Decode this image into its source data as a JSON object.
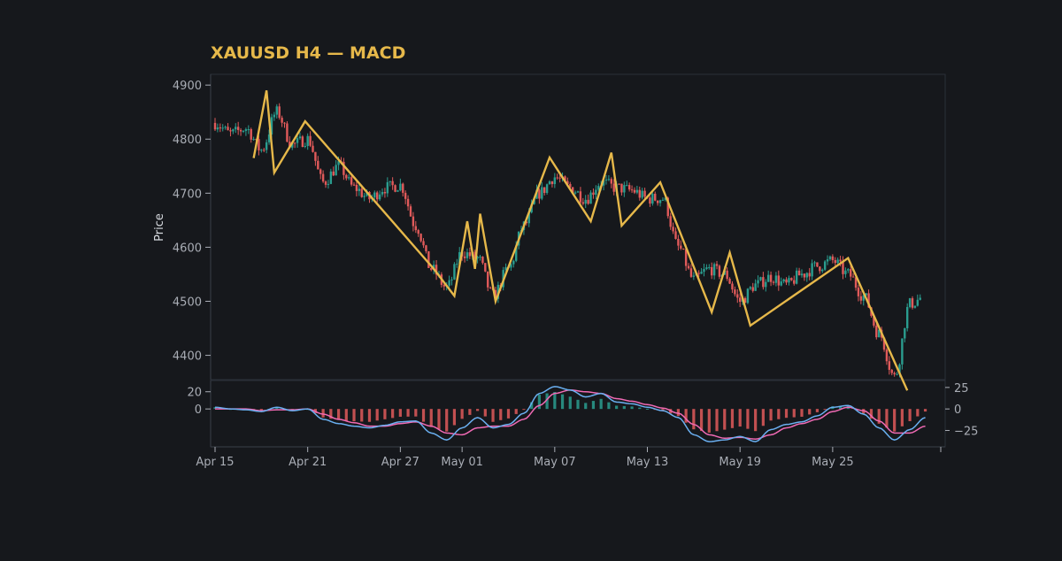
{
  "chart_data": {
    "type": "candlestick+macd",
    "title": "XAUUSD H4 — MACD",
    "price_panel": {
      "ylabel": "Price",
      "ylim": [
        4360,
        4915
      ],
      "yticks": [
        4400,
        4500,
        4600,
        4700,
        4800,
        4900
      ],
      "candles": {
        "start": "2025-04-15",
        "interval_hours": 4,
        "count": 275,
        "close_anchors": [
          [
            "2025-04-15",
            4830
          ],
          [
            "2025-04-16",
            4810
          ],
          [
            "2025-04-17",
            4820
          ],
          [
            "2025-04-18",
            4780
          ],
          [
            "2025-04-19",
            4850
          ],
          [
            "2025-04-20",
            4790
          ],
          [
            "2025-04-21",
            4800
          ],
          [
            "2025-04-22",
            4720
          ],
          [
            "2025-04-23",
            4750
          ],
          [
            "2025-04-24",
            4710
          ],
          [
            "2025-04-25",
            4690
          ],
          [
            "2025-04-26",
            4710
          ],
          [
            "2025-04-27",
            4715
          ],
          [
            "2025-04-28",
            4640
          ],
          [
            "2025-04-29",
            4560
          ],
          [
            "2025-04-30",
            4525
          ],
          [
            "2025-05-01",
            4590
          ],
          [
            "2025-05-02",
            4580
          ],
          [
            "2025-05-03",
            4510
          ],
          [
            "2025-05-04",
            4560
          ],
          [
            "2025-05-05",
            4640
          ],
          [
            "2025-05-06",
            4700
          ],
          [
            "2025-05-07",
            4730
          ],
          [
            "2025-05-08",
            4710
          ],
          [
            "2025-05-09",
            4690
          ],
          [
            "2025-05-10",
            4720
          ],
          [
            "2025-05-11",
            4710
          ],
          [
            "2025-05-12",
            4705
          ],
          [
            "2025-05-13",
            4690
          ],
          [
            "2025-05-14",
            4690
          ],
          [
            "2025-05-15",
            4600
          ],
          [
            "2025-05-16",
            4540
          ],
          [
            "2025-05-17",
            4560
          ],
          [
            "2025-05-18",
            4550
          ],
          [
            "2025-05-19",
            4500
          ],
          [
            "2025-05-20",
            4530
          ],
          [
            "2025-05-21",
            4545
          ],
          [
            "2025-05-22",
            4530
          ],
          [
            "2025-05-23",
            4550
          ],
          [
            "2025-05-24",
            4565
          ],
          [
            "2025-05-25",
            4575
          ],
          [
            "2025-05-26",
            4550
          ],
          [
            "2025-05-27",
            4510
          ],
          [
            "2025-05-28",
            4440
          ],
          [
            "2025-05-29",
            4360
          ],
          [
            "2025-05-30",
            4495
          ],
          [
            "2025-05-31",
            4510
          ]
        ]
      },
      "zigzag": [
        [
          "2025-04-17T12:00",
          4765
        ],
        [
          "2025-04-18T08:00",
          4890
        ],
        [
          "2025-04-18T20:00",
          4738
        ],
        [
          "2025-04-20T20:00",
          4833
        ],
        [
          "2025-04-29T04:00",
          4560
        ],
        [
          "2025-04-30T12:00",
          4510
        ],
        [
          "2025-05-01T08:00",
          4648
        ],
        [
          "2025-05-01T20:00",
          4560
        ],
        [
          "2025-05-02T04:00",
          4662
        ],
        [
          "2025-05-03T04:00",
          4500
        ],
        [
          "2025-05-06T16:00",
          4766
        ],
        [
          "2025-05-09T08:00",
          4648
        ],
        [
          "2025-05-10T16:00",
          4775
        ],
        [
          "2025-05-11T08:00",
          4640
        ],
        [
          "2025-05-13T20:00",
          4720
        ],
        [
          "2025-05-17T04:00",
          4480
        ],
        [
          "2025-05-18T08:00",
          4590
        ],
        [
          "2025-05-19T16:00",
          4455
        ],
        [
          "2025-05-26T00:00",
          4580
        ],
        [
          "2025-05-29T20:00",
          4335
        ]
      ]
    },
    "macd_panel": {
      "ylim": [
        -42,
        30
      ],
      "left_ticks": [
        0,
        20
      ],
      "right_ticks": [
        25,
        0,
        -25
      ],
      "macd_anchors": [
        [
          "2025-04-15",
          2
        ],
        [
          "2025-04-16",
          0
        ],
        [
          "2025-04-17",
          -1
        ],
        [
          "2025-04-18",
          -3
        ],
        [
          "2025-04-19",
          2
        ],
        [
          "2025-04-20",
          -2
        ],
        [
          "2025-04-21",
          0
        ],
        [
          "2025-04-22",
          -12
        ],
        [
          "2025-04-23",
          -17
        ],
        [
          "2025-04-24",
          -20
        ],
        [
          "2025-04-25",
          -22
        ],
        [
          "2025-04-26",
          -19
        ],
        [
          "2025-04-27",
          -15
        ],
        [
          "2025-04-28",
          -14
        ],
        [
          "2025-04-29",
          -28
        ],
        [
          "2025-04-30",
          -36
        ],
        [
          "2025-05-01",
          -22
        ],
        [
          "2025-05-02",
          -10
        ],
        [
          "2025-05-03",
          -22
        ],
        [
          "2025-05-04",
          -18
        ],
        [
          "2025-05-05",
          -5
        ],
        [
          "2025-05-06",
          18
        ],
        [
          "2025-05-07",
          26
        ],
        [
          "2025-05-08",
          22
        ],
        [
          "2025-05-09",
          14
        ],
        [
          "2025-05-10",
          18
        ],
        [
          "2025-05-11",
          8
        ],
        [
          "2025-05-12",
          6
        ],
        [
          "2025-05-13",
          2
        ],
        [
          "2025-05-14",
          -2
        ],
        [
          "2025-05-15",
          -10
        ],
        [
          "2025-05-16",
          -30
        ],
        [
          "2025-05-17",
          -38
        ],
        [
          "2025-05-18",
          -36
        ],
        [
          "2025-05-19",
          -32
        ],
        [
          "2025-05-20",
          -38
        ],
        [
          "2025-05-21",
          -24
        ],
        [
          "2025-05-22",
          -18
        ],
        [
          "2025-05-23",
          -15
        ],
        [
          "2025-05-24",
          -8
        ],
        [
          "2025-05-25",
          2
        ],
        [
          "2025-05-26",
          4
        ],
        [
          "2025-05-27",
          -6
        ],
        [
          "2025-05-28",
          -22
        ],
        [
          "2025-05-29",
          -36
        ],
        [
          "2025-05-30",
          -24
        ],
        [
          "2025-05-31",
          -10
        ]
      ],
      "signal_anchors": [
        [
          "2025-04-15",
          0
        ],
        [
          "2025-04-16",
          0
        ],
        [
          "2025-04-17",
          0
        ],
        [
          "2025-04-18",
          -2
        ],
        [
          "2025-04-19",
          -1
        ],
        [
          "2025-04-20",
          -1
        ],
        [
          "2025-04-21",
          0
        ],
        [
          "2025-04-22",
          -6
        ],
        [
          "2025-04-23",
          -12
        ],
        [
          "2025-04-24",
          -16
        ],
        [
          "2025-04-25",
          -20
        ],
        [
          "2025-04-26",
          -20
        ],
        [
          "2025-04-27",
          -17
        ],
        [
          "2025-04-28",
          -15
        ],
        [
          "2025-04-29",
          -20
        ],
        [
          "2025-04-30",
          -28
        ],
        [
          "2025-05-01",
          -30
        ],
        [
          "2025-05-02",
          -22
        ],
        [
          "2025-05-03",
          -20
        ],
        [
          "2025-05-04",
          -20
        ],
        [
          "2025-05-05",
          -12
        ],
        [
          "2025-05-06",
          4
        ],
        [
          "2025-05-07",
          18
        ],
        [
          "2025-05-08",
          22
        ],
        [
          "2025-05-09",
          20
        ],
        [
          "2025-05-10",
          18
        ],
        [
          "2025-05-11",
          12
        ],
        [
          "2025-05-12",
          9
        ],
        [
          "2025-05-13",
          5
        ],
        [
          "2025-05-14",
          1
        ],
        [
          "2025-05-15",
          -5
        ],
        [
          "2025-05-16",
          -18
        ],
        [
          "2025-05-17",
          -30
        ],
        [
          "2025-05-18",
          -34
        ],
        [
          "2025-05-19",
          -33
        ],
        [
          "2025-05-20",
          -35
        ],
        [
          "2025-05-21",
          -30
        ],
        [
          "2025-05-22",
          -22
        ],
        [
          "2025-05-23",
          -17
        ],
        [
          "2025-05-24",
          -12
        ],
        [
          "2025-05-25",
          -3
        ],
        [
          "2025-05-26",
          2
        ],
        [
          "2025-05-27",
          -2
        ],
        [
          "2025-05-28",
          -14
        ],
        [
          "2025-05-29",
          -28
        ],
        [
          "2025-05-30",
          -28
        ],
        [
          "2025-05-31",
          -20
        ]
      ]
    },
    "x_axis": {
      "ticks": [
        "Apr 15",
        "Apr 21",
        "Apr 27",
        "May 01",
        "May 07",
        "May 13",
        "May 19",
        "May 25"
      ],
      "tick_dates": [
        "2025-04-15",
        "2025-04-21",
        "2025-04-27",
        "2025-05-01",
        "2025-05-07",
        "2025-05-13",
        "2025-05-19",
        "2025-05-25"
      ],
      "range": [
        "2025-04-15",
        "2025-06-01"
      ]
    },
    "colors": {
      "background": "#16181c",
      "title": "#e6b84a",
      "up": "#2a9d8f",
      "down": "#e05a5a",
      "zigzag": "#e6b84a",
      "macd": "#6aaff0",
      "signal": "#f06ab4",
      "axis_text": "#a9adb5",
      "frame": "#2b2f38"
    },
    "grid": false,
    "legend": "none"
  }
}
